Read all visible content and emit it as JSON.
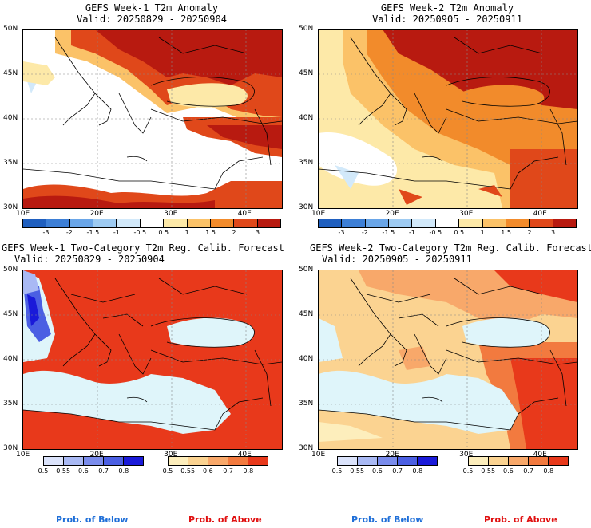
{
  "panels": [
    {
      "title": "GEFS Week-1 T2m Anomaly",
      "valid": "Valid: 20250829 - 20250904"
    },
    {
      "title": "GEFS Week-2 T2m Anomaly",
      "valid": "Valid: 20250905 - 20250911"
    },
    {
      "title": "GEFS Week-1 Two-Category T2m Reg. Calib. Forecast",
      "valid": "Valid: 20250829 - 20250904"
    },
    {
      "title": "GEFS Week-2 Two-Category T2m Reg. Calib. Forecast",
      "valid": "Valid: 20250905 - 20250911"
    }
  ],
  "lat_labels": [
    "50N",
    "45N",
    "40N",
    "35N",
    "30N"
  ],
  "lon_labels": [
    "10E",
    "20E",
    "30E",
    "40E"
  ],
  "anomaly_scale": {
    "labels": [
      "-3",
      "-2",
      "-1.5",
      "-1",
      "-0.5",
      "0.5",
      "1",
      "1.5",
      "2",
      "3"
    ],
    "colors": [
      "#1f5fbf",
      "#3d7fd6",
      "#6aa6e8",
      "#9ecbf2",
      "#d2e9fa",
      "#ffffff",
      "#fde9a8",
      "#fbc268",
      "#f28b2b",
      "#e0481a",
      "#b81a10"
    ]
  },
  "below_scale": {
    "labels": [
      "0.5",
      "0.55",
      "0.6",
      "0.7",
      "0.8"
    ],
    "colors": [
      "#dbe3fb",
      "#a9b9f4",
      "#7a8cec",
      "#4b5fe3",
      "#1a1ad9"
    ]
  },
  "above_scale": {
    "labels": [
      "0.5",
      "0.55",
      "0.6",
      "0.7",
      "0.8"
    ],
    "colors": [
      "#fdeebc",
      "#fbd391",
      "#f8a86a",
      "#f27a3f",
      "#e8391b"
    ]
  },
  "prob_below": "Prob. of Below",
  "prob_above": "Prob. of Above",
  "colors": {
    "prob_below_text": "#1f6fd8",
    "prob_above_text": "#e01010",
    "sea_neutral": "#dff5fa"
  }
}
